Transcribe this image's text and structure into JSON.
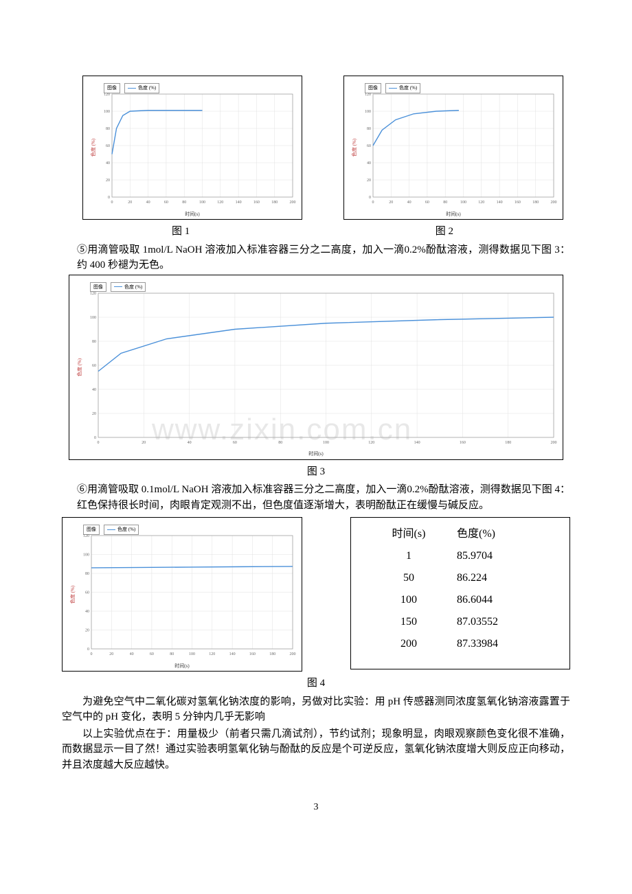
{
  "charts_top": {
    "chart1": {
      "type": "line",
      "xlabel": "时间(s)",
      "ylabel": "色度 (%)",
      "legend": [
        "图像",
        "色度 (%)"
      ],
      "xlim": [
        0,
        200
      ],
      "xtick_step": 20,
      "ylim": [
        0,
        120
      ],
      "ytick_step": 20,
      "line_color": "#4a90d9",
      "grid_color": "#e0e0e0",
      "background_color": "#ffffff",
      "points": [
        [
          0,
          50
        ],
        [
          5,
          80
        ],
        [
          12,
          95
        ],
        [
          20,
          100
        ],
        [
          40,
          101
        ],
        [
          100,
          101
        ]
      ]
    },
    "chart2": {
      "type": "line",
      "xlabel": "时间(s)",
      "ylabel": "色度 (%)",
      "legend": [
        "图像",
        "色度 (%)"
      ],
      "xlim": [
        0,
        200
      ],
      "xtick_step": 20,
      "ylim": [
        0,
        120
      ],
      "ytick_step": 20,
      "line_color": "#4a90d9",
      "grid_color": "#e0e0e0",
      "background_color": "#ffffff",
      "points": [
        [
          0,
          60
        ],
        [
          10,
          78
        ],
        [
          25,
          90
        ],
        [
          45,
          97
        ],
        [
          70,
          100
        ],
        [
          95,
          101
        ]
      ]
    }
  },
  "caption1": "图 1",
  "caption2": "图 2",
  "para1": "⑤用滴管吸取 1mol/L NaOH 溶液加入标准容器三分之二高度，加入一滴0.2%酚酞溶液，测得数据见下图 3：约 400 秒褪为无色。",
  "chart3": {
    "type": "line",
    "xlabel": "时间(s)",
    "ylabel": "色度 (%)",
    "legend": [
      "图像",
      "色度 (%)"
    ],
    "xlim": [
      0,
      200
    ],
    "xtick_step": 20,
    "ylim": [
      0,
      120
    ],
    "ytick_step": 20,
    "line_color": "#4a90d9",
    "grid_color": "#e0e0e0",
    "background_color": "#ffffff",
    "watermark": "www.zixin.com.cn",
    "points": [
      [
        0,
        55
      ],
      [
        10,
        70
      ],
      [
        30,
        82
      ],
      [
        60,
        90
      ],
      [
        100,
        95
      ],
      [
        150,
        98
      ],
      [
        200,
        100
      ]
    ]
  },
  "caption3": "图 3",
  "para2": "⑥用滴管吸取 0.1mol/L NaOH 溶液加入标准容器三分之二高度，加入一滴0.2%酚酞溶液，测得数据见下图 4：红色保持很长时间，肉眼肯定观测不出，但色度值逐渐增大，表明酚酞正在缓慢与碱反应。",
  "chart4": {
    "type": "line",
    "xlabel": "时间(s)",
    "ylabel": "色度 (%)",
    "legend": [
      "图像",
      "色度 (%)"
    ],
    "xlim": [
      0,
      200
    ],
    "xtick_step": 20,
    "ylim": [
      0,
      120
    ],
    "ytick_step": 20,
    "line_color": "#4a90d9",
    "grid_color": "#e0e0e0",
    "background_color": "#ffffff",
    "points": [
      [
        0,
        85.9
      ],
      [
        50,
        86.2
      ],
      [
        100,
        86.6
      ],
      [
        150,
        87.0
      ],
      [
        200,
        87.3
      ]
    ]
  },
  "table4": {
    "header": {
      "col1": "时间(s)",
      "col2": "色度(%)"
    },
    "rows": [
      {
        "t": "1",
        "v": "85.9704"
      },
      {
        "t": "50",
        "v": "86.224"
      },
      {
        "t": "100",
        "v": "86.6044"
      },
      {
        "t": "150",
        "v": "87.03552"
      },
      {
        "t": "200",
        "v": "87.33984"
      }
    ]
  },
  "caption4": "图 4",
  "para3": "为避免空气中二氧化碳对氢氧化钠浓度的影响，另做对比实验：用 pH 传感器测同浓度氢氧化钠溶液露置于空气中的 pH 变化，表明 5 分钟内几乎无影响",
  "para4": "以上实验优点在于：用量极少（前者只需几滴试剂），节约试剂；现象明显，肉眼观察颜色变化很不准确，而数据显示一目了然！通过实验表明氢氧化钠与酚酞的反应是个可逆反应，氢氧化钠浓度增大则反应正向移动，并且浓度越大反应越快。",
  "page_number": "3"
}
